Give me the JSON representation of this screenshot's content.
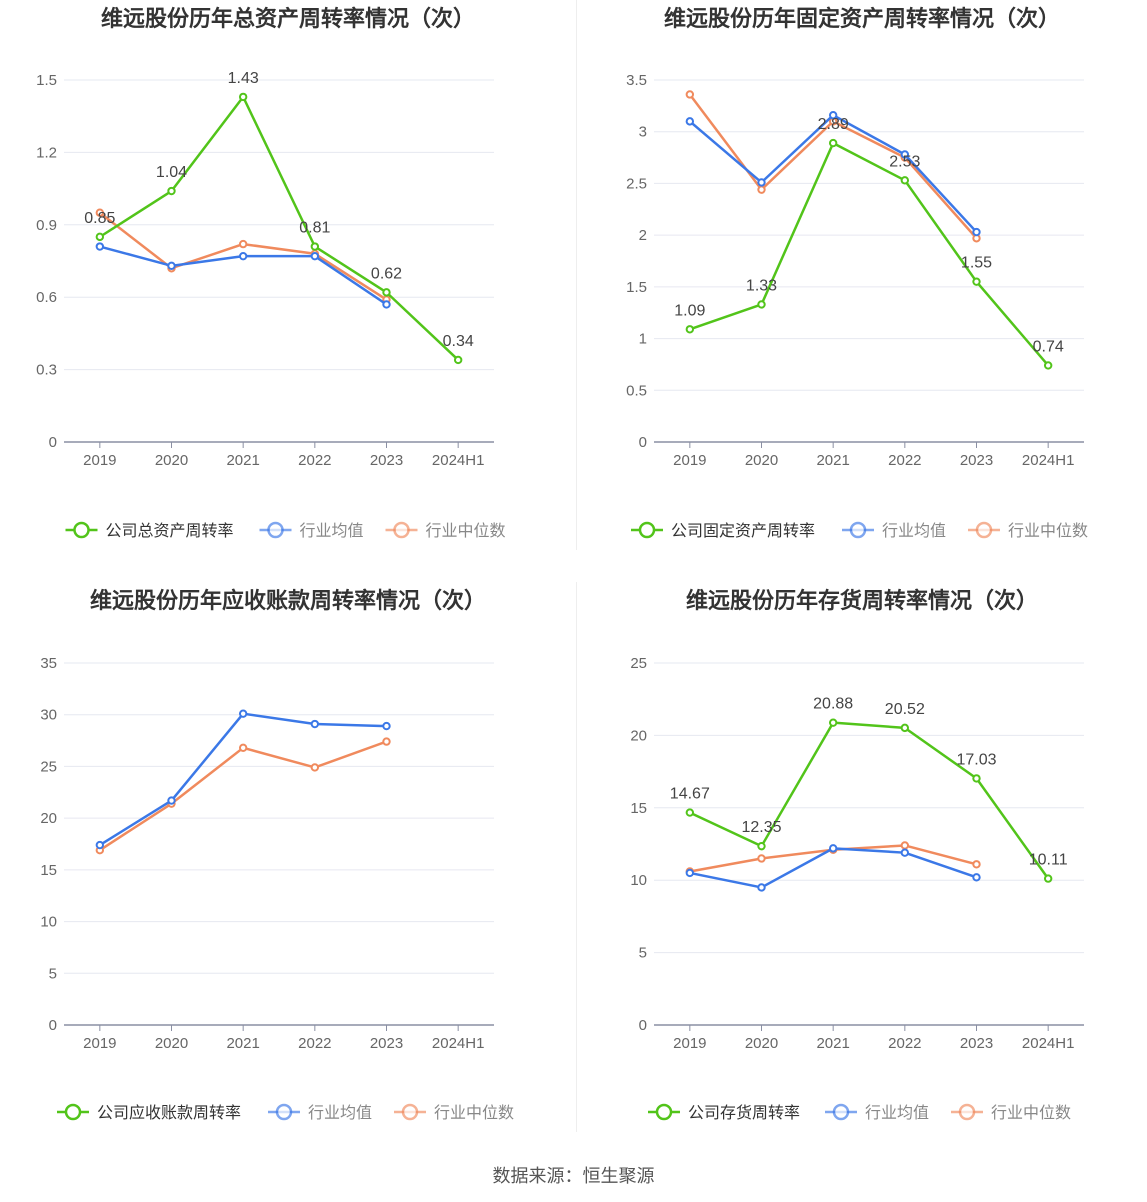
{
  "footer": {
    "source": "数据来源：恒生聚源"
  },
  "colors": {
    "company": "#52c41a",
    "avg": "#3b78e7",
    "median": "#f08a5d",
    "grid": "#e6e8f0",
    "axis": "#8a8fa3",
    "text": "#666666",
    "title": "#333333"
  },
  "chart_data": [
    {
      "type": "line",
      "title": "维远股份历年总资产周转率情况（次）",
      "categories": [
        "2019",
        "2020",
        "2021",
        "2022",
        "2023",
        "2024H1"
      ],
      "yticks": [
        "0",
        "0.3",
        "0.6",
        "0.9",
        "1.2",
        "1.5"
      ],
      "ylim": [
        0,
        1.5
      ],
      "grid": true,
      "legend_position": "bottom",
      "series": [
        {
          "name": "公司总资产周转率",
          "color": "#52c41a",
          "values": [
            0.85,
            1.04,
            1.43,
            0.81,
            0.62,
            0.34
          ],
          "data_labels": [
            "0.85",
            "1.04",
            "1.43",
            "0.81",
            "0.62",
            "0.34"
          ]
        },
        {
          "name": "行业均值",
          "color": "#3b78e7",
          "values": [
            0.81,
            0.73,
            0.77,
            0.77,
            0.57,
            null
          ]
        },
        {
          "name": "行业中位数",
          "color": "#f08a5d",
          "values": [
            0.95,
            0.72,
            0.82,
            0.78,
            0.59,
            null
          ]
        }
      ]
    },
    {
      "type": "line",
      "title": "维远股份历年固定资产周转率情况（次）",
      "categories": [
        "2019",
        "2020",
        "2021",
        "2022",
        "2023",
        "2024H1"
      ],
      "yticks": [
        "0",
        "0.5",
        "1",
        "1.5",
        "2",
        "2.5",
        "3",
        "3.5"
      ],
      "ylim": [
        0,
        3.5
      ],
      "grid": true,
      "legend_position": "bottom",
      "series": [
        {
          "name": "公司固定资产周转率",
          "color": "#52c41a",
          "values": [
            1.09,
            1.33,
            2.89,
            2.53,
            1.55,
            0.74
          ],
          "data_labels": [
            "1.09",
            "1.33",
            "2.89",
            "2.53",
            "1.55",
            "0.74"
          ]
        },
        {
          "name": "行业均值",
          "color": "#3b78e7",
          "values": [
            3.1,
            2.51,
            3.16,
            2.78,
            2.03,
            null
          ]
        },
        {
          "name": "行业中位数",
          "color": "#f08a5d",
          "values": [
            3.36,
            2.44,
            3.1,
            2.75,
            1.97,
            null
          ]
        }
      ]
    },
    {
      "type": "line",
      "title": "维远股份历年应收账款周转率情况（次）",
      "categories": [
        "2019",
        "2020",
        "2021",
        "2022",
        "2023",
        "2024H1"
      ],
      "yticks": [
        "0",
        "5",
        "10",
        "15",
        "20",
        "25",
        "30",
        "35"
      ],
      "ylim": [
        0,
        35
      ],
      "grid": true,
      "legend_position": "bottom",
      "series": [
        {
          "name": "公司应收账款周转率",
          "color": "#52c41a",
          "values": [
            null,
            null,
            null,
            null,
            null,
            null
          ],
          "data_labels": []
        },
        {
          "name": "行业均值",
          "color": "#3b78e7",
          "values": [
            17.4,
            21.7,
            30.1,
            29.1,
            28.9,
            null
          ]
        },
        {
          "name": "行业中位数",
          "color": "#f08a5d",
          "values": [
            16.9,
            21.4,
            26.8,
            24.9,
            27.4,
            null
          ]
        }
      ]
    },
    {
      "type": "line",
      "title": "维远股份历年存货周转率情况（次）",
      "categories": [
        "2019",
        "2020",
        "2021",
        "2022",
        "2023",
        "2024H1"
      ],
      "yticks": [
        "0",
        "5",
        "10",
        "15",
        "20",
        "25"
      ],
      "ylim": [
        0,
        25
      ],
      "grid": true,
      "legend_position": "bottom",
      "series": [
        {
          "name": "公司存货周转率",
          "color": "#52c41a",
          "values": [
            14.67,
            12.35,
            20.88,
            20.52,
            17.03,
            10.11
          ],
          "data_labels": [
            "14.67",
            "12.35",
            "20.88",
            "20.52",
            "17.03",
            "10.11"
          ]
        },
        {
          "name": "行业均值",
          "color": "#3b78e7",
          "values": [
            10.5,
            9.5,
            12.2,
            11.9,
            10.2,
            null
          ]
        },
        {
          "name": "行业中位数",
          "color": "#f08a5d",
          "values": [
            10.6,
            11.5,
            12.1,
            12.4,
            11.1,
            null
          ]
        }
      ]
    }
  ]
}
